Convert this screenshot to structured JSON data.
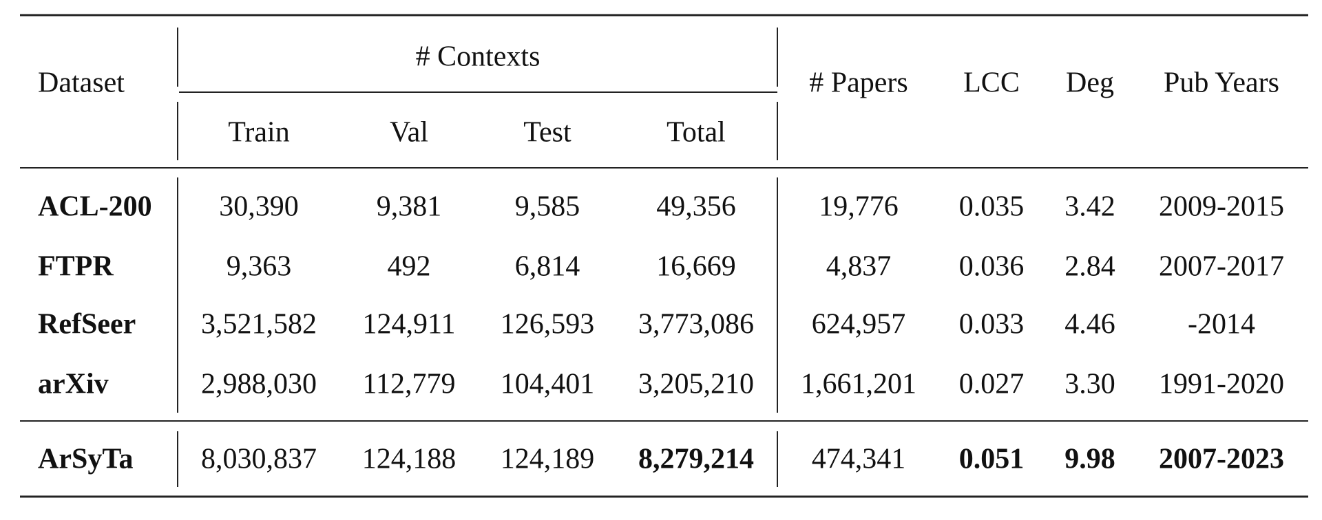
{
  "table": {
    "header": {
      "dataset": "Dataset",
      "contexts": "# Contexts",
      "papers": "# Papers",
      "lcc": "LCC",
      "deg": "Deg",
      "pub_years": "Pub Years",
      "sub": [
        "Train",
        "Val",
        "Test",
        "Total"
      ]
    },
    "rows": [
      [
        "ACL-200",
        "30,390",
        "9,381",
        "9,585",
        "49,356",
        "19,776",
        "0.035",
        "3.42",
        "2009-2015"
      ],
      [
        "FTPR",
        "9,363",
        "492",
        "6,814",
        "16,669",
        "4,837",
        "0.036",
        "2.84",
        "2007-2017"
      ],
      [
        "RefSeer",
        "3,521,582",
        "124,911",
        "126,593",
        "3,773,086",
        "624,957",
        "0.033",
        "4.46",
        "-2014"
      ],
      [
        "arXiv",
        "2,988,030",
        "112,779",
        "104,401",
        "3,205,210",
        "1,661,201",
        "0.027",
        "3.30",
        "1991-2020"
      ],
      [
        "ArSyTa",
        "8,030,837",
        "124,188",
        "124,189",
        "8,279,214",
        "474,341",
        "0.051",
        "9.98",
        "2007-2023"
      ]
    ]
  }
}
